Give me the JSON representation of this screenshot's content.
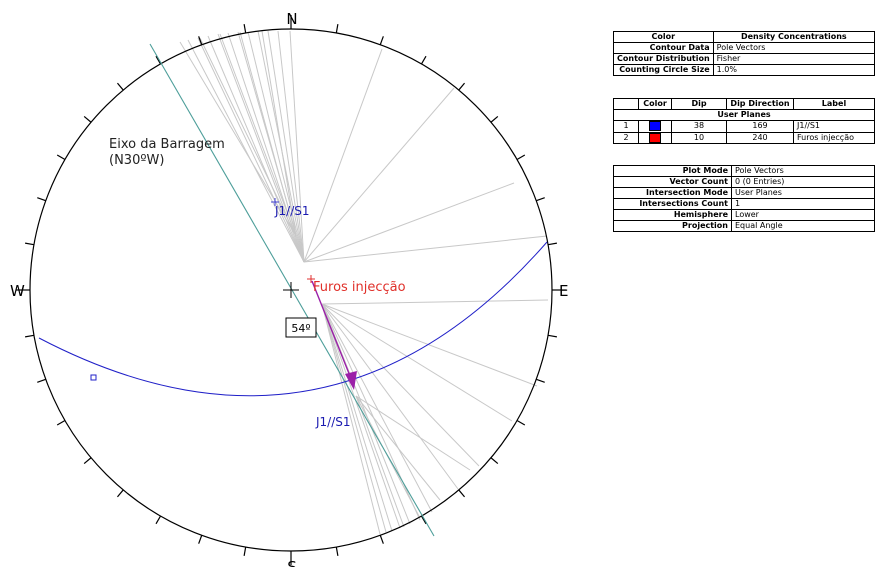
{
  "stereonet": {
    "cardinals": {
      "n": "N",
      "e": "E",
      "s": "S",
      "w": "W"
    },
    "dam_axis_label_line1": "Eixo da Barragem",
    "dam_axis_label_line2": "(N30ºW)",
    "angle_label": "54º",
    "pole_label_j1": "J1//S1",
    "pole_label_furos": "Furos injecção",
    "plane_label_j1": "J1//S1",
    "colors": {
      "outline": "#000000",
      "dam_axis": "#4d9e9a",
      "plane_j1": "#2020c8",
      "label_j1": "#1a1ab0",
      "label_furos": "#e0302a",
      "pole_j1": "#4040d0",
      "pole_furos": "#e03030",
      "vector": "#9b1fa8",
      "fan_lines": "#c8c8c8"
    }
  },
  "panel": {
    "table1": {
      "header": {
        "col1": "Color",
        "col2": "Density Concentrations"
      },
      "rows": [
        {
          "label": "Contour Data",
          "value": "Pole Vectors"
        },
        {
          "label": "Contour Distribution",
          "value": "Fisher"
        },
        {
          "label": "Counting Circle Size",
          "value": "1.0%"
        }
      ]
    },
    "table2": {
      "headers": [
        "",
        "Color",
        "Dip",
        "Dip Direction",
        "Label"
      ],
      "section": "User Planes",
      "rows": [
        {
          "id": "1",
          "color": "#0000ff",
          "dip": "38",
          "dip_direction": "169",
          "label": "J1//S1"
        },
        {
          "id": "2",
          "color": "#ff0000",
          "dip": "10",
          "dip_direction": "240",
          "label": "Furos injecção"
        }
      ]
    },
    "table3": {
      "rows": [
        {
          "label": "Plot Mode",
          "value": "Pole Vectors"
        },
        {
          "label": "Vector Count",
          "value": "0 (0 Entries)"
        },
        {
          "label": "Intersection Mode",
          "value": "User Planes"
        },
        {
          "label": "Intersections Count",
          "value": "1"
        },
        {
          "label": "Hemisphere",
          "value": "Lower"
        },
        {
          "label": "Projection",
          "value": "Equal Angle"
        }
      ]
    }
  }
}
